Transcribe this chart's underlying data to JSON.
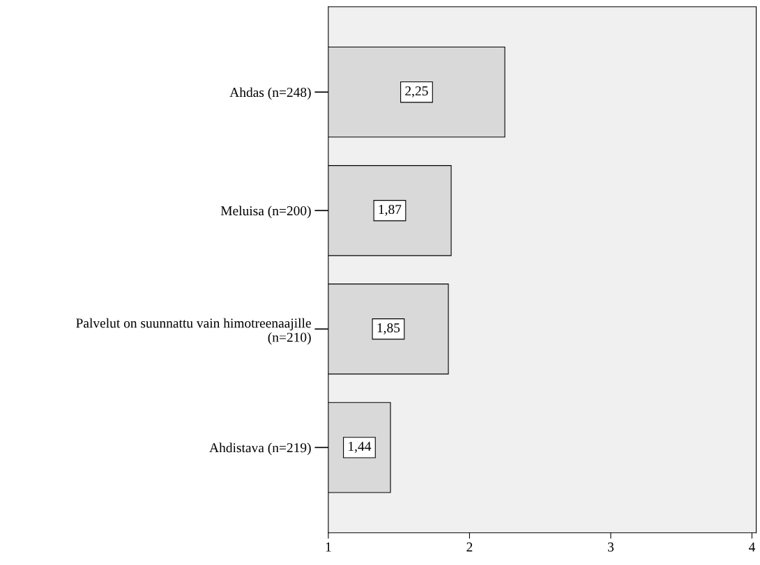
{
  "chart_data": {
    "type": "bar",
    "orientation": "horizontal",
    "categories": [
      "Ahdas (n=248)",
      "Meluisa (n=200)",
      "Palvelut on suunnattu vain himotreenaajille\n(n=210)",
      "Ahdistava (n=219)"
    ],
    "values": [
      2.25,
      1.87,
      1.85,
      1.44
    ],
    "value_labels": [
      "2,25",
      "1,87",
      "1,85",
      "1,44"
    ],
    "color": "#d9d9d9",
    "xlim": [
      1,
      4.03
    ],
    "xticks": [
      1,
      2,
      3,
      4
    ],
    "grid": false,
    "legend": false
  }
}
